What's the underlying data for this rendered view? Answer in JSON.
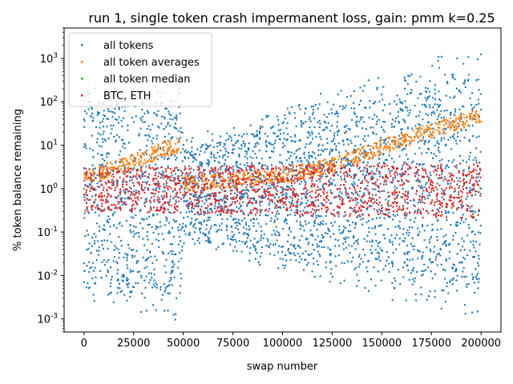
{
  "chart_data": {
    "type": "scatter",
    "title": "run 1, single token crash impermanent loss, gain: pmm k=0.25",
    "xlabel": "swap number",
    "ylabel": "% token balance remaining",
    "xlim": [
      -10000,
      210000
    ],
    "ylim": [
      0.0005,
      5000
    ],
    "yscale": "log",
    "grid": false,
    "legend_position": "top-left",
    "x_ticks": [
      0,
      25000,
      50000,
      75000,
      100000,
      125000,
      150000,
      175000,
      200000
    ],
    "x_tick_labels": [
      "0",
      "25000",
      "50000",
      "75000",
      "100000",
      "125000",
      "150000",
      "175000",
      "200000"
    ],
    "y_ticks": [
      0.001,
      0.01,
      0.1,
      1,
      10,
      100,
      1000
    ],
    "y_tick_labels": [
      "10^-3",
      "10^-2",
      "10^-1",
      "10^0",
      "10^1",
      "10^2",
      "10^3"
    ],
    "series": [
      {
        "name": "all tokens",
        "color": "#1f77b4",
        "envelope": {
          "x": [
            0,
            49000,
            50000,
            200000
          ],
          "upper": [
            300,
            300,
            15,
            3000
          ],
          "lower": [
            0.002,
            0.0008,
            0.05,
            0.0007
          ]
        }
      },
      {
        "name": "all token averages",
        "color": "#ff7f0e",
        "x": [
          0,
          10000,
          20000,
          30000,
          40000,
          48000,
          50000,
          75000,
          100000,
          125000,
          150000,
          175000,
          200000
        ],
        "y": [
          2,
          2.5,
          3.5,
          5,
          8,
          10,
          1.3,
          1.6,
          2,
          3.5,
          9,
          22,
          50
        ]
      },
      {
        "name": "all token median",
        "color": "#2ca02c",
        "x": [
          0,
          200000
        ],
        "y": [
          1,
          1
        ]
      },
      {
        "name": "BTC, ETH",
        "color": "#d62728",
        "envelope": {
          "x": [
            0,
            200000
          ],
          "upper": [
            3,
            4
          ],
          "lower": [
            0.3,
            0.2
          ]
        }
      }
    ]
  }
}
